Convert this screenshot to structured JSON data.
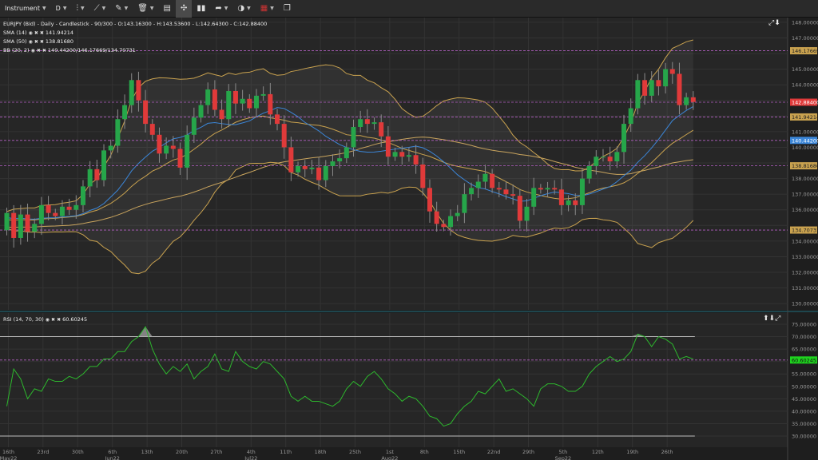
{
  "toolbar": {
    "instrument_label": "Instrument",
    "timeframe_label": "D",
    "icons": [
      "chart-type-icon",
      "draw-line-icon",
      "annotation-icon",
      "delete-icon",
      "layout-icon",
      "crosshair-icon",
      "indicators-icon",
      "share-icon",
      "theme-icon",
      "language-flag-icon",
      "window-icon"
    ]
  },
  "legends": {
    "main": "EURJPY (Bid) - Daily - Candlestick - 90/300 - O:143.16300 - H:143.53600 - L:142.64300 - C:142.88400",
    "sma14": "SMA (14)",
    "sma14_value": "141.94214",
    "sma50": "SMA (50)",
    "sma50_value": "138.81680",
    "bb": "BB (20, 2)",
    "bb_value": "140.44200/146.17669/134.70731",
    "rsi": "RSI (14, 70, 30)",
    "rsi_value": "60.60245"
  },
  "colors": {
    "up": "#26a64a",
    "down": "#e03a3a",
    "sma14": "#3b86d8",
    "sma50": "#caa55e",
    "bb": "#c9a24f",
    "rsi": "#2db82d",
    "level": "#b45fc4",
    "close_badge": "#e03a3a"
  },
  "chart_data": [
    {
      "type": "candlestick",
      "title": "EURJPY (Bid) - Daily - Candlestick",
      "ylim": [
        129.6,
        148.3
      ],
      "y_ticks": [
        "148.00000",
        "147.00000",
        "146.17669",
        "145.00000",
        "144.00000",
        "142.88400",
        "141.94214",
        "141.00000",
        "140.44200",
        "140.00000",
        "138.81680",
        "138.00000",
        "137.00000",
        "136.00000",
        "134.70731",
        "134.00000",
        "133.00000",
        "132.00000",
        "131.00000",
        "130.00000"
      ],
      "x_ticks": [
        "16th\nMay22",
        "23rd",
        "30th",
        "6th\nJun22",
        "13th",
        "20th",
        "27th",
        "4th\nJul22",
        "11th",
        "18th",
        "25th",
        "1st\nAug22",
        "8th",
        "15th",
        "22nd",
        "29th",
        "5th\nSep22",
        "12th",
        "19th",
        "26th"
      ],
      "price_labels": [
        "146.17669",
        "142.88400",
        "141.94214",
        "140.44200",
        "138.81680",
        "134.70731"
      ],
      "close": [
        135.8,
        134.2,
        135.7,
        134.6,
        135.1,
        136.3,
        135.8,
        135.6,
        136.2,
        136.0,
        136.3,
        137.5,
        138.6,
        137.9,
        139.8,
        140.1,
        141.8,
        142.7,
        144.3,
        143.0,
        141.5,
        140.8,
        139.6,
        140.1,
        139.9,
        138.7,
        140.8,
        141.9,
        142.7,
        143.7,
        142.4,
        141.8,
        143.6,
        142.8,
        143.1,
        142.5,
        143.3,
        143.4,
        142.1,
        141.5,
        140.0,
        138.4,
        138.8,
        138.6,
        138.7,
        137.9,
        138.8,
        139.1,
        139.3,
        140.0,
        141.3,
        141.8,
        141.5,
        141.6,
        140.7,
        139.4,
        139.7,
        139.4,
        139.5,
        138.9,
        137.4,
        135.9,
        135.1,
        134.9,
        135.6,
        135.8,
        137.0,
        137.4,
        137.8,
        138.3,
        137.4,
        137.3,
        137.0,
        136.9,
        135.3,
        136.2,
        137.4,
        137.3,
        137.4,
        137.3,
        136.3,
        136.6,
        136.3,
        138.0,
        138.8,
        139.4,
        139.4,
        139.1,
        139.7,
        141.5,
        142.5,
        144.3,
        143.3,
        144.3,
        143.9,
        145.0,
        144.7,
        142.7,
        143.2,
        142.9
      ],
      "series": [
        {
          "name": "SMA (14)",
          "last": 141.94214
        },
        {
          "name": "SMA (50)",
          "last": 138.8168
        },
        {
          "name": "BB (20, 2)",
          "middle": 140.442,
          "upper": 146.17669,
          "lower": 134.70731
        }
      ],
      "level_lines": [
        146.17669,
        142.884,
        141.94214,
        140.442,
        138.8168,
        134.70731
      ]
    },
    {
      "type": "line",
      "title": "RSI (14, 70, 30)",
      "ylim": [
        25.5,
        79.5
      ],
      "y_ticks": [
        "75.00000",
        "70.00000",
        "65.00000",
        "60.60245",
        "55.00000",
        "50.00000",
        "45.00000",
        "40.00000",
        "35.00000",
        "30.00000"
      ],
      "overbought": 70,
      "oversold": 30,
      "last": 60.60245,
      "values": [
        42,
        57,
        53,
        45,
        49,
        48,
        53,
        52,
        52,
        54,
        53,
        55,
        58,
        58,
        61,
        61,
        64,
        64,
        68,
        70,
        74,
        65,
        59,
        55,
        58,
        56,
        59,
        53,
        56,
        58,
        63,
        57,
        56,
        64,
        60,
        58,
        57,
        60,
        59,
        56,
        53,
        46,
        44,
        46,
        44,
        44,
        43,
        42,
        44,
        49,
        52,
        50,
        54,
        56,
        53,
        49,
        47,
        44,
        46,
        45,
        42,
        38,
        37,
        34,
        35,
        39,
        42,
        44,
        48,
        47,
        50,
        53,
        48,
        49,
        47,
        45,
        42,
        49,
        51,
        51,
        50,
        48,
        48,
        50,
        55,
        58,
        60,
        62,
        60,
        61,
        64,
        71,
        70,
        66,
        70,
        69,
        67,
        61,
        62,
        61
      ]
    }
  ]
}
